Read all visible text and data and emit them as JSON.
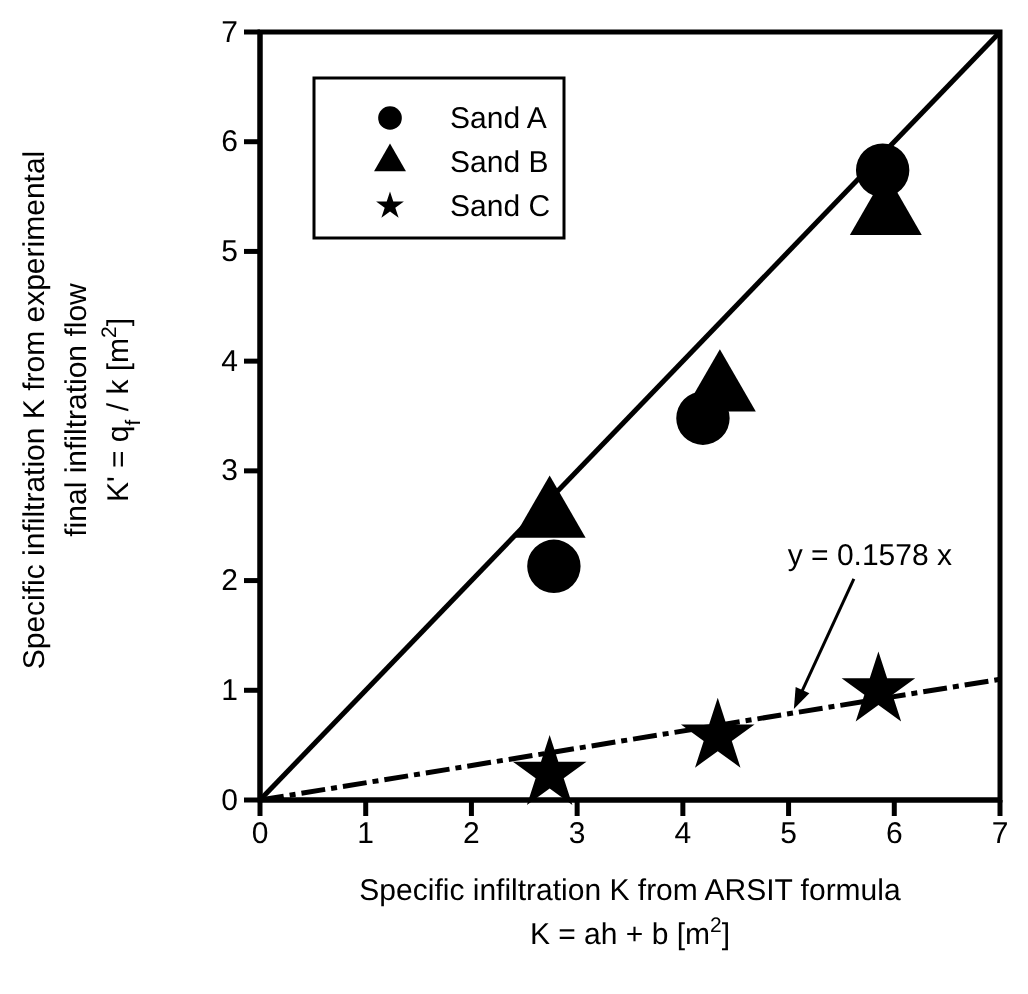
{
  "chart_data": {
    "type": "scatter",
    "xlabel": "Specific infiltration K from ARSIT formula\nK = ah + b [m$^{2}$]",
    "ylabel": "Specific infiltration K from experimental\nfinal infiltration flow\nK' = q$_{f}$ / k  [m$^{2}$]",
    "series": [
      {
        "name": "Sand A",
        "color": "#000000",
        "marker": "circle",
        "x": [
          2.78,
          4.19,
          5.89
        ],
        "values": [
          2.13,
          3.48,
          5.74
        ]
      },
      {
        "name": "Sand B",
        "color": "#000000",
        "marker": "triangle",
        "x": [
          2.74,
          4.35,
          5.92
        ],
        "values": [
          2.58,
          3.73,
          5.34
        ]
      },
      {
        "name": "Sand C",
        "color": "#000000",
        "marker": "star",
        "x": [
          2.74,
          4.33,
          5.85
        ],
        "values": [
          0.24,
          0.58,
          1.0
        ]
      },
      {
        "type": "line",
        "color": "#000000",
        "marker": "none",
        "line_style": "solid",
        "x": [
          0,
          7
        ],
        "values": [
          0,
          7
        ]
      },
      {
        "type": "line",
        "color": "#000000",
        "marker": "none",
        "line_style": "dashed",
        "x": [
          0,
          7
        ],
        "values": [
          0,
          1.1
        ]
      }
    ],
    "annotations": [
      {
        "text": "y = 0.1578 x",
        "x": 5.05,
        "y": 0.83
      }
    ],
    "xlim": [
      0,
      7
    ],
    "ylim": [
      0,
      7
    ],
    "xticks": [
      0,
      1,
      2,
      3,
      4,
      5,
      6,
      7
    ],
    "yticks": [
      0,
      1,
      2,
      3,
      4,
      5,
      6,
      7
    ],
    "grid": false,
    "legend": "top left"
  }
}
